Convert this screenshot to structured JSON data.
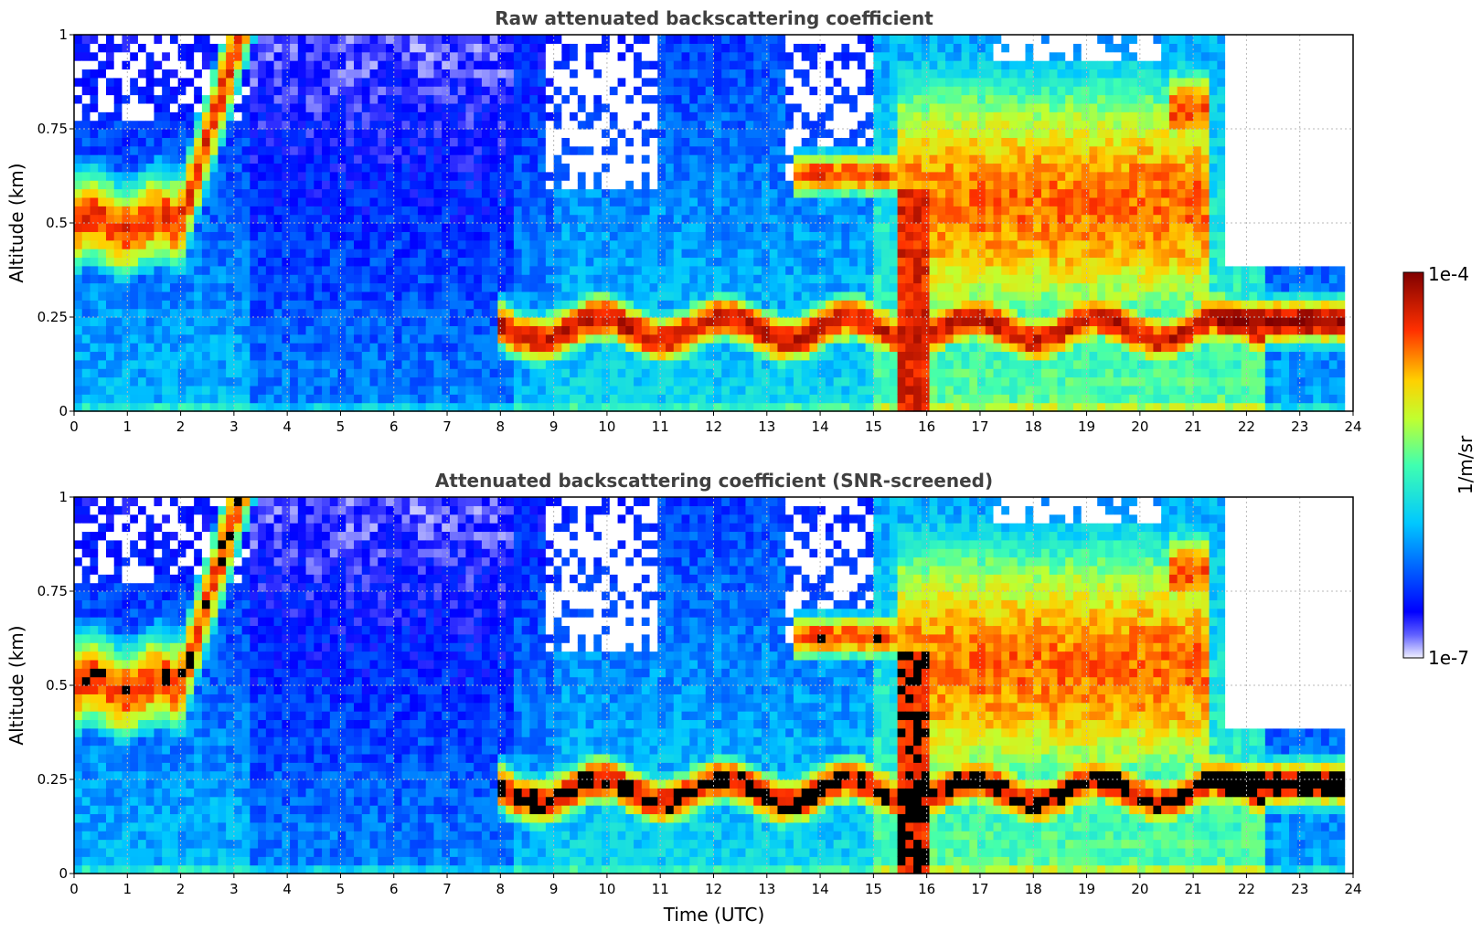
{
  "chart_data": [
    {
      "type": "heatmap",
      "title": "Raw attenuated backscattering coefficient",
      "ylabel": "Altitude (km)",
      "xlabel": "",
      "xlim": [
        0,
        24
      ],
      "ylim": [
        0,
        1
      ],
      "x_ticks": [
        "0",
        "1",
        "2",
        "3",
        "4",
        "5",
        "6",
        "7",
        "8",
        "9",
        "10",
        "11",
        "12",
        "13",
        "14",
        "15",
        "16",
        "17",
        "18",
        "19",
        "20",
        "21",
        "22",
        "23",
        "24"
      ],
      "y_ticks": [
        "0",
        "0.25",
        "0.5",
        "0.75",
        "1"
      ],
      "grid": true,
      "screened": false
    },
    {
      "type": "heatmap",
      "title": "Attenuated backscattering coefficient (SNR-screened)",
      "ylabel": "Altitude (km)",
      "xlabel": "Time (UTC)",
      "xlim": [
        0,
        24
      ],
      "ylim": [
        0,
        1
      ],
      "x_ticks": [
        "0",
        "1",
        "2",
        "3",
        "4",
        "5",
        "6",
        "7",
        "8",
        "9",
        "10",
        "11",
        "12",
        "13",
        "14",
        "15",
        "16",
        "17",
        "18",
        "19",
        "20",
        "21",
        "22",
        "23",
        "24"
      ],
      "y_ticks": [
        "0",
        "0.25",
        "0.5",
        "0.75",
        "1"
      ],
      "grid": true,
      "screened": true
    }
  ],
  "colorbar": {
    "max_label": "1e-4",
    "min_label": "1e-7",
    "unit_label": "1/m/sr",
    "colormap": "jet",
    "scale": "log"
  }
}
